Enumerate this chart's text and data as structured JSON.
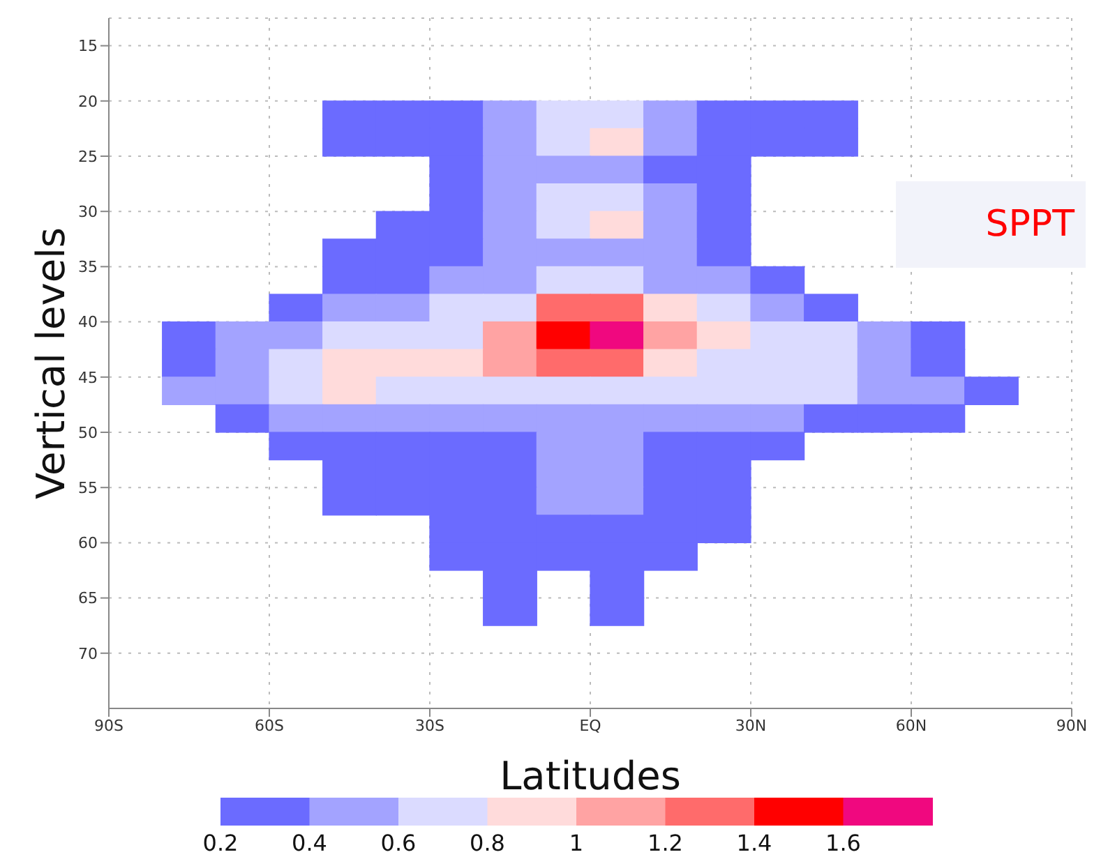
{
  "chart_data": {
    "type": "scatter",
    "marker": "square",
    "xlabel": "Latitudes",
    "ylabel": "Vertical levels",
    "annotations": [
      "SPPT"
    ],
    "xlim": [
      -90,
      90
    ],
    "ylim": [
      75,
      12.5
    ],
    "xticks": [
      {
        "value": -90,
        "label": "90S"
      },
      {
        "value": -60,
        "label": "60S"
      },
      {
        "value": -30,
        "label": "30S"
      },
      {
        "value": 0,
        "label": "EQ"
      },
      {
        "value": 30,
        "label": "30N"
      },
      {
        "value": 60,
        "label": "60N"
      },
      {
        "value": 90,
        "label": "90N"
      }
    ],
    "yticks": [
      15,
      20,
      25,
      30,
      35,
      40,
      45,
      50,
      55,
      60,
      65,
      70
    ],
    "grid": true,
    "clim": [
      0.2,
      1.8
    ],
    "cticks": [
      0.2,
      0.4,
      0.6,
      0.8,
      1,
      1.2,
      1.4,
      1.6
    ],
    "colors": [
      "#6b6bff",
      "#a3a3ff",
      "#dbdbff",
      "#ffdbdb",
      "#ffa3a3",
      "#ff6b6b",
      "#ff0000",
      "#f0087f"
    ],
    "series": [
      {
        "x": [
          -45,
          -35,
          -25,
          -15,
          -5,
          5,
          15,
          25,
          35,
          45
        ],
        "values": [
          21.25,
          21.25,
          21.25,
          21.25,
          21.25,
          21.25,
          21.25,
          21.25,
          21.25,
          21.25
        ],
        "colors": [
          "#6b6bff",
          "#6b6bff",
          "#6b6bff",
          "#a3a3ff",
          "#dbdbff",
          "#dbdbff",
          "#a3a3ff",
          "#6b6bff",
          "#6b6bff",
          "#6b6bff"
        ]
      },
      {
        "x": [
          -45,
          -35,
          -25,
          -15,
          -5,
          5,
          15,
          25,
          35,
          45
        ],
        "values": [
          23.75,
          23.75,
          23.75,
          23.75,
          23.75,
          23.75,
          23.75,
          23.75,
          23.75,
          23.75
        ],
        "colors": [
          "#6b6bff",
          "#6b6bff",
          "#6b6bff",
          "#a3a3ff",
          "#dbdbff",
          "#ffdbdb",
          "#a3a3ff",
          "#6b6bff",
          "#6b6bff",
          "#6b6bff"
        ]
      },
      {
        "x": [
          -25,
          -15,
          -5,
          5,
          15,
          25
        ],
        "values": [
          26.25,
          26.25,
          26.25,
          26.25,
          26.25,
          26.25
        ],
        "colors": [
          "#6b6bff",
          "#a3a3ff",
          "#a3a3ff",
          "#a3a3ff",
          "#6b6bff",
          "#6b6bff"
        ]
      },
      {
        "x": [
          -25,
          -15,
          -5,
          5,
          15,
          25
        ],
        "values": [
          28.75,
          28.75,
          28.75,
          28.75,
          28.75,
          28.75
        ],
        "colors": [
          "#6b6bff",
          "#a3a3ff",
          "#dbdbff",
          "#dbdbff",
          "#a3a3ff",
          "#6b6bff"
        ]
      },
      {
        "x": [
          -35,
          -25,
          -15,
          -5,
          5,
          15,
          25
        ],
        "values": [
          31.25,
          31.25,
          31.25,
          31.25,
          31.25,
          31.25,
          31.25
        ],
        "colors": [
          "#6b6bff",
          "#6b6bff",
          "#a3a3ff",
          "#dbdbff",
          "#ffdbdb",
          "#a3a3ff",
          "#6b6bff"
        ]
      },
      {
        "x": [
          -45,
          -35,
          -25,
          -15,
          -5,
          5,
          15,
          25
        ],
        "values": [
          33.75,
          33.75,
          33.75,
          33.75,
          33.75,
          33.75,
          33.75,
          33.75
        ],
        "colors": [
          "#6b6bff",
          "#6b6bff",
          "#6b6bff",
          "#a3a3ff",
          "#a3a3ff",
          "#a3a3ff",
          "#a3a3ff",
          "#6b6bff"
        ]
      },
      {
        "x": [
          -45,
          -35,
          -25,
          -15,
          -5,
          5,
          15,
          25,
          35
        ],
        "values": [
          36.25,
          36.25,
          36.25,
          36.25,
          36.25,
          36.25,
          36.25,
          36.25,
          36.25
        ],
        "colors": [
          "#6b6bff",
          "#6b6bff",
          "#a3a3ff",
          "#a3a3ff",
          "#dbdbff",
          "#dbdbff",
          "#a3a3ff",
          "#a3a3ff",
          "#6b6bff"
        ]
      },
      {
        "x": [
          -55,
          -45,
          -35,
          -25,
          -15,
          -5,
          5,
          15,
          25,
          35,
          45
        ],
        "values": [
          38.75,
          38.75,
          38.75,
          38.75,
          38.75,
          38.75,
          38.75,
          38.75,
          38.75,
          38.75,
          38.75
        ],
        "colors": [
          "#6b6bff",
          "#a3a3ff",
          "#a3a3ff",
          "#dbdbff",
          "#dbdbff",
          "#ff6b6b",
          "#ff6b6b",
          "#ffdbdb",
          "#dbdbff",
          "#a3a3ff",
          "#6b6bff"
        ]
      },
      {
        "x": [
          -75,
          -65,
          -55,
          -45,
          -35,
          -25,
          -15,
          -5,
          5,
          15,
          25,
          35,
          45,
          55,
          65
        ],
        "values": [
          41.25,
          41.25,
          41.25,
          41.25,
          41.25,
          41.25,
          41.25,
          41.25,
          41.25,
          41.25,
          41.25,
          41.25,
          41.25,
          41.25,
          41.25
        ],
        "colors": [
          "#6b6bff",
          "#a3a3ff",
          "#a3a3ff",
          "#dbdbff",
          "#dbdbff",
          "#dbdbff",
          "#ffa3a3",
          "#ff0000",
          "#f0087f",
          "#ffa3a3",
          "#ffdbdb",
          "#dbdbff",
          "#dbdbff",
          "#a3a3ff",
          "#6b6bff"
        ]
      },
      {
        "x": [
          -75,
          -65,
          -55,
          -45,
          -35,
          -25,
          -15,
          -5,
          5,
          15,
          25,
          35,
          45,
          55,
          65
        ],
        "values": [
          43.75,
          43.75,
          43.75,
          43.75,
          43.75,
          43.75,
          43.75,
          43.75,
          43.75,
          43.75,
          43.75,
          43.75,
          43.75,
          43.75,
          43.75
        ],
        "colors": [
          "#6b6bff",
          "#a3a3ff",
          "#dbdbff",
          "#ffdbdb",
          "#ffdbdb",
          "#ffdbdb",
          "#ffa3a3",
          "#ff6b6b",
          "#ff6b6b",
          "#ffdbdb",
          "#dbdbff",
          "#dbdbff",
          "#dbdbff",
          "#a3a3ff",
          "#6b6bff"
        ]
      },
      {
        "x": [
          -75,
          -65,
          -55,
          -45,
          -35,
          -25,
          -15,
          -5,
          5,
          15,
          25,
          35,
          45,
          55,
          65,
          75
        ],
        "values": [
          46.25,
          46.25,
          46.25,
          46.25,
          46.25,
          46.25,
          46.25,
          46.25,
          46.25,
          46.25,
          46.25,
          46.25,
          46.25,
          46.25,
          46.25,
          46.25
        ],
        "colors": [
          "#a3a3ff",
          "#a3a3ff",
          "#dbdbff",
          "#ffdbdb",
          "#dbdbff",
          "#dbdbff",
          "#dbdbff",
          "#dbdbff",
          "#dbdbff",
          "#dbdbff",
          "#dbdbff",
          "#dbdbff",
          "#dbdbff",
          "#a3a3ff",
          "#a3a3ff",
          "#6b6bff"
        ]
      },
      {
        "x": [
          -65,
          -55,
          -45,
          -35,
          -25,
          -15,
          -5,
          5,
          15,
          25,
          35,
          45,
          55,
          65
        ],
        "values": [
          48.75,
          48.75,
          48.75,
          48.75,
          48.75,
          48.75,
          48.75,
          48.75,
          48.75,
          48.75,
          48.75,
          48.75,
          48.75,
          48.75
        ],
        "colors": [
          "#6b6bff",
          "#a3a3ff",
          "#a3a3ff",
          "#a3a3ff",
          "#a3a3ff",
          "#a3a3ff",
          "#a3a3ff",
          "#a3a3ff",
          "#a3a3ff",
          "#a3a3ff",
          "#a3a3ff",
          "#6b6bff",
          "#6b6bff",
          "#6b6bff"
        ]
      },
      {
        "x": [
          -55,
          -45,
          -35,
          -25,
          -15,
          -5,
          5,
          15,
          25,
          35
        ],
        "values": [
          51.25,
          51.25,
          51.25,
          51.25,
          51.25,
          51.25,
          51.25,
          51.25,
          51.25,
          51.25
        ],
        "colors": [
          "#6b6bff",
          "#6b6bff",
          "#6b6bff",
          "#6b6bff",
          "#6b6bff",
          "#a3a3ff",
          "#a3a3ff",
          "#6b6bff",
          "#6b6bff",
          "#6b6bff"
        ]
      },
      {
        "x": [
          -45,
          -35,
          -25,
          -15,
          -5,
          5,
          15,
          25
        ],
        "values": [
          53.75,
          53.75,
          53.75,
          53.75,
          53.75,
          53.75,
          53.75,
          53.75
        ],
        "colors": [
          "#6b6bff",
          "#6b6bff",
          "#6b6bff",
          "#6b6bff",
          "#a3a3ff",
          "#a3a3ff",
          "#6b6bff",
          "#6b6bff"
        ]
      },
      {
        "x": [
          -45,
          -35,
          -25,
          -15,
          -5,
          5,
          15,
          25
        ],
        "values": [
          56.25,
          56.25,
          56.25,
          56.25,
          56.25,
          56.25,
          56.25,
          56.25
        ],
        "colors": [
          "#6b6bff",
          "#6b6bff",
          "#6b6bff",
          "#6b6bff",
          "#a3a3ff",
          "#a3a3ff",
          "#6b6bff",
          "#6b6bff"
        ]
      },
      {
        "x": [
          -25,
          -15,
          -5,
          5,
          15,
          25
        ],
        "values": [
          58.75,
          58.75,
          58.75,
          58.75,
          58.75,
          58.75
        ],
        "color": "#6b6bff"
      },
      {
        "x": [
          -25,
          -15,
          -5,
          5,
          15
        ],
        "values": [
          61.25,
          61.25,
          61.25,
          61.25,
          61.25
        ],
        "color": "#6b6bff"
      },
      {
        "x": [
          -15,
          5
        ],
        "values": [
          63.75,
          63.75
        ],
        "color": "#6b6bff"
      },
      {
        "x": [
          -15,
          5
        ],
        "values": [
          66.25,
          66.25
        ],
        "color": "#6b6bff"
      }
    ]
  }
}
